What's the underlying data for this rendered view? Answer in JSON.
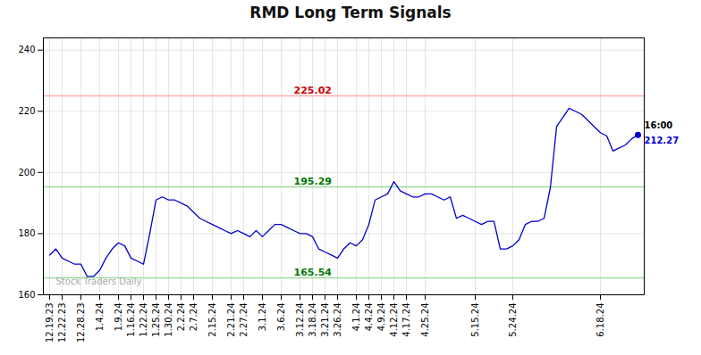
{
  "chart_data": {
    "type": "line",
    "title": "RMD Long Term Signals",
    "color": "#0000cc",
    "categories": [
      "12.19.23",
      null,
      "12.22.23",
      null,
      null,
      "12.28.23",
      null,
      null,
      "1.4.24",
      null,
      null,
      "1.9.24",
      null,
      "1.16.24",
      null,
      "1.22.24",
      null,
      "1.25.24",
      null,
      "1.30.24",
      null,
      "2.2.24",
      null,
      "2.7.24",
      null,
      null,
      "2.15.24",
      null,
      null,
      "2.21.24",
      null,
      "2.27.24",
      null,
      null,
      "3.1.24",
      null,
      null,
      "3.6.24",
      null,
      null,
      "3.12.24",
      null,
      "3.18.24",
      null,
      "3.21.24",
      null,
      "3.26.24",
      null,
      null,
      "4.1.24",
      null,
      "4.4.24",
      null,
      "4.9.24",
      null,
      "4.12.24",
      null,
      "4.17.24",
      null,
      null,
      "4.25.24",
      null,
      null,
      null,
      null,
      null,
      null,
      null,
      "5.15.24",
      null,
      null,
      null,
      null,
      null,
      "5.24.24",
      null,
      null,
      null,
      null,
      null,
      null,
      null,
      null,
      null,
      null,
      null,
      null,
      null,
      "6.18.24",
      null,
      null,
      null,
      null,
      null,
      null
    ],
    "values": [
      173,
      175,
      172,
      171,
      170,
      170,
      166,
      166,
      168,
      172,
      175,
      177,
      176,
      172,
      171,
      170,
      180,
      191,
      192,
      191,
      191,
      190,
      189,
      187,
      185,
      184,
      183,
      182,
      181,
      180,
      181,
      180,
      179,
      181,
      179,
      181,
      183,
      183,
      182,
      181,
      180,
      180,
      179,
      175,
      174,
      173,
      172,
      175,
      177,
      176,
      178,
      183,
      191,
      192,
      193,
      197,
      194,
      193,
      192,
      192,
      193,
      193,
      192,
      191,
      192,
      185,
      186,
      185,
      184,
      183,
      184,
      184,
      175,
      175,
      176,
      178,
      183,
      184,
      184,
      185,
      195,
      215,
      218,
      221,
      220,
      219,
      217,
      215,
      213,
      212,
      207,
      208,
      209,
      211,
      212.27
    ],
    "ylim": [
      160,
      244
    ],
    "yticks": [
      160,
      180,
      200,
      220,
      240
    ],
    "grid": true,
    "reference_lines": [
      {
        "y": 225.02,
        "label": "225.02",
        "color": "#ffaaaa",
        "label_color": "#cc0000"
      },
      {
        "y": 195.29,
        "label": "195.29",
        "color": "#99dd99",
        "label_color": "#007700"
      },
      {
        "y": 165.54,
        "label": "165.54",
        "color": "#99dd99",
        "label_color": "#007700"
      }
    ],
    "annotations": [
      {
        "text": "16:00",
        "color": "#000000"
      },
      {
        "text": "212.27",
        "color": "#0000cc"
      }
    ],
    "watermark": {
      "text": "Stock Traders Daily",
      "color": "#aaaaaa"
    }
  }
}
